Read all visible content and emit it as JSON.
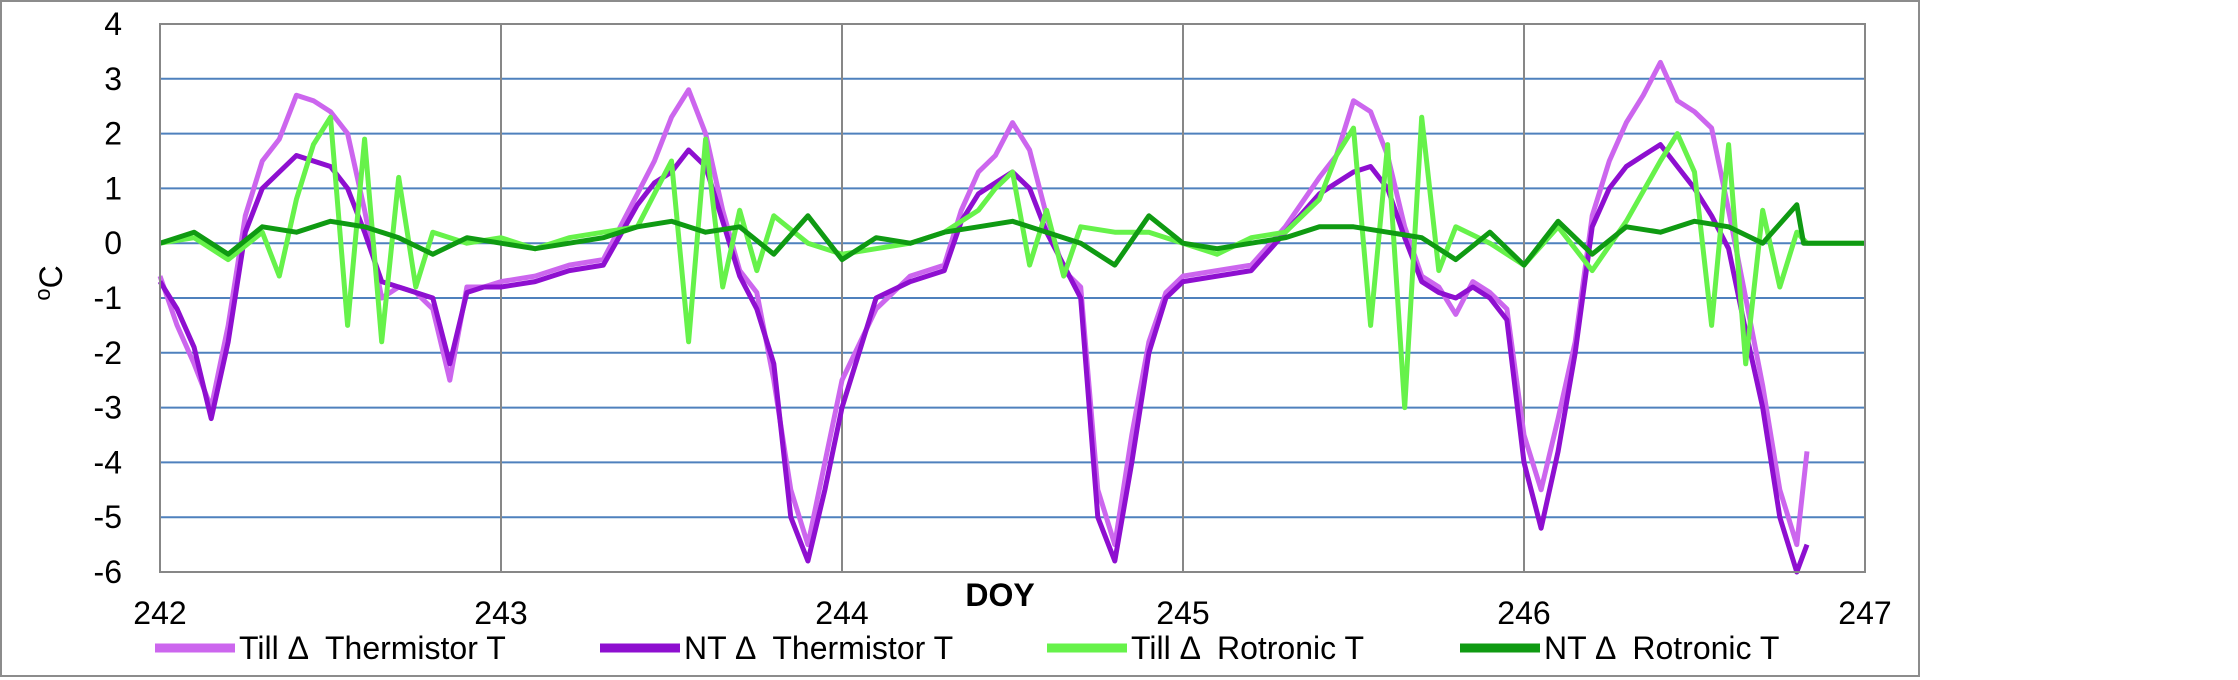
{
  "chart_data": {
    "type": "line",
    "title": "",
    "xlabel": "DOY",
    "ylabel_main": "C",
    "ylabel_superscript": "o",
    "xlim": [
      242,
      247
    ],
    "ylim": [
      -6,
      4
    ],
    "x_ticks": [
      242,
      243,
      244,
      245,
      246,
      247
    ],
    "y_ticks": [
      4,
      3,
      2,
      1,
      0,
      -1,
      -2,
      -3,
      -4,
      -5,
      -6
    ],
    "grid": "on",
    "legend_position": "bottom",
    "colors": {
      "gridline": "#4f81bd",
      "verticalGrid": "#878787",
      "till_thermistor": "#cc66ee",
      "nt_thermistor": "#8e0fd0",
      "till_rotronic": "#66f24a",
      "nt_rotronic": "#0f9a12"
    },
    "series": [
      {
        "name": "Till Δ  Thermistor T",
        "key": "till_thermistor",
        "x": [
          242.0,
          242.05,
          242.1,
          242.15,
          242.2,
          242.25,
          242.3,
          242.35,
          242.4,
          242.45,
          242.5,
          242.55,
          242.6,
          242.65,
          242.7,
          242.75,
          242.8,
          242.85,
          242.9,
          242.95,
          243.0,
          243.1,
          243.2,
          243.3,
          243.4,
          243.45,
          243.5,
          243.55,
          243.6,
          243.65,
          243.7,
          243.75,
          243.8,
          243.85,
          243.9,
          243.95,
          244.0,
          244.1,
          244.2,
          244.3,
          244.35,
          244.4,
          244.45,
          244.5,
          244.55,
          244.6,
          244.65,
          244.7,
          244.75,
          244.8,
          244.85,
          244.9,
          244.95,
          245.0,
          245.1,
          245.2,
          245.3,
          245.4,
          245.45,
          245.5,
          245.55,
          245.6,
          245.65,
          245.7,
          245.75,
          245.8,
          245.85,
          245.9,
          245.95,
          246.0,
          246.05,
          246.1,
          246.15,
          246.2,
          246.25,
          246.3,
          246.35,
          246.4,
          246.45,
          246.5,
          246.55,
          246.6,
          246.65,
          246.7,
          246.75,
          246.8,
          246.83
        ],
        "y": [
          -0.6,
          -1.5,
          -2.2,
          -3.0,
          -1.5,
          0.5,
          1.5,
          1.9,
          2.7,
          2.6,
          2.4,
          2.0,
          0.6,
          -1.0,
          -0.8,
          -0.9,
          -1.2,
          -2.5,
          -0.8,
          -0.8,
          -0.7,
          -0.6,
          -0.4,
          -0.3,
          0.9,
          1.5,
          2.3,
          2.8,
          2.0,
          0.6,
          -0.5,
          -0.9,
          -2.5,
          -4.5,
          -5.5,
          -4.0,
          -2.5,
          -1.2,
          -0.6,
          -0.4,
          0.6,
          1.3,
          1.6,
          2.2,
          1.7,
          0.5,
          -0.5,
          -0.8,
          -4.5,
          -5.5,
          -3.5,
          -1.8,
          -0.9,
          -0.6,
          -0.5,
          -0.4,
          0.3,
          1.2,
          1.6,
          2.6,
          2.4,
          1.6,
          0.3,
          -0.6,
          -0.8,
          -1.3,
          -0.7,
          -0.9,
          -1.2,
          -3.5,
          -4.5,
          -3.2,
          -1.8,
          0.5,
          1.5,
          2.2,
          2.7,
          3.3,
          2.6,
          2.4,
          2.1,
          0.6,
          -1.0,
          -2.6,
          -4.5,
          -5.5,
          -3.8
        ]
      },
      {
        "name": "NT Δ  Thermistor T",
        "key": "nt_thermistor",
        "x": [
          242.0,
          242.05,
          242.1,
          242.15,
          242.2,
          242.25,
          242.3,
          242.35,
          242.4,
          242.45,
          242.5,
          242.55,
          242.6,
          242.65,
          242.7,
          242.75,
          242.8,
          242.85,
          242.9,
          242.95,
          243.0,
          243.1,
          243.2,
          243.3,
          243.4,
          243.45,
          243.5,
          243.55,
          243.6,
          243.65,
          243.7,
          243.75,
          243.8,
          243.85,
          243.9,
          243.95,
          244.0,
          244.1,
          244.2,
          244.3,
          244.35,
          244.4,
          244.45,
          244.5,
          244.55,
          244.6,
          244.65,
          244.7,
          244.75,
          244.8,
          244.85,
          244.9,
          244.95,
          245.0,
          245.1,
          245.2,
          245.3,
          245.4,
          245.45,
          245.5,
          245.55,
          245.6,
          245.65,
          245.7,
          245.75,
          245.8,
          245.85,
          245.9,
          245.95,
          246.0,
          246.05,
          246.1,
          246.15,
          246.2,
          246.25,
          246.3,
          246.35,
          246.4,
          246.45,
          246.5,
          246.55,
          246.6,
          246.65,
          246.7,
          246.75,
          246.8,
          246.83
        ],
        "y": [
          -0.7,
          -1.2,
          -1.9,
          -3.2,
          -1.8,
          0.2,
          1.0,
          1.3,
          1.6,
          1.5,
          1.4,
          1.0,
          0.2,
          -0.7,
          -0.8,
          -0.9,
          -1.0,
          -2.2,
          -0.9,
          -0.8,
          -0.8,
          -0.7,
          -0.5,
          -0.4,
          0.7,
          1.1,
          1.3,
          1.7,
          1.4,
          0.4,
          -0.6,
          -1.2,
          -2.2,
          -5.0,
          -5.8,
          -4.5,
          -3.0,
          -1.0,
          -0.7,
          -0.5,
          0.4,
          0.9,
          1.1,
          1.3,
          1.0,
          0.2,
          -0.4,
          -1.0,
          -5.0,
          -5.8,
          -4.0,
          -2.0,
          -1.0,
          -0.7,
          -0.6,
          -0.5,
          0.2,
          0.9,
          1.1,
          1.3,
          1.4,
          1.0,
          0.1,
          -0.7,
          -0.9,
          -1.0,
          -0.8,
          -1.0,
          -1.4,
          -4.0,
          -5.2,
          -3.8,
          -2.0,
          0.3,
          1.0,
          1.4,
          1.6,
          1.8,
          1.4,
          1.0,
          0.5,
          -0.1,
          -1.6,
          -3.0,
          -5.0,
          -6.0,
          -5.5
        ]
      },
      {
        "name": "Till Δ  Rotronic T",
        "key": "till_rotronic",
        "x": [
          242.0,
          242.1,
          242.2,
          242.3,
          242.35,
          242.4,
          242.45,
          242.5,
          242.55,
          242.6,
          242.65,
          242.7,
          242.75,
          242.8,
          242.9,
          243.0,
          243.1,
          243.2,
          243.3,
          243.4,
          243.45,
          243.5,
          243.55,
          243.6,
          243.65,
          243.7,
          243.75,
          243.8,
          243.9,
          244.0,
          244.1,
          244.2,
          244.3,
          244.4,
          244.45,
          244.5,
          244.55,
          244.6,
          244.65,
          244.7,
          244.8,
          244.9,
          245.0,
          245.1,
          245.2,
          245.3,
          245.4,
          245.45,
          245.5,
          245.55,
          245.6,
          245.65,
          245.7,
          245.75,
          245.8,
          245.9,
          246.0,
          246.1,
          246.2,
          246.3,
          246.4,
          246.45,
          246.5,
          246.55,
          246.6,
          246.65,
          246.7,
          246.75,
          246.8,
          246.83,
          246.85,
          247.0
        ],
        "y": [
          0.0,
          0.1,
          -0.3,
          0.2,
          -0.6,
          0.8,
          1.8,
          2.3,
          -1.5,
          1.9,
          -1.8,
          1.2,
          -0.8,
          0.2,
          0.0,
          0.1,
          -0.1,
          0.1,
          0.2,
          0.3,
          0.9,
          1.5,
          -1.8,
          1.9,
          -0.8,
          0.6,
          -0.5,
          0.5,
          0.0,
          -0.2,
          -0.1,
          0.0,
          0.2,
          0.6,
          1.0,
          1.3,
          -0.4,
          0.6,
          -0.6,
          0.3,
          0.2,
          0.2,
          0.0,
          -0.2,
          0.1,
          0.2,
          0.8,
          1.6,
          2.1,
          -1.5,
          1.8,
          -3.0,
          2.3,
          -0.5,
          0.3,
          0.0,
          -0.4,
          0.3,
          -0.5,
          0.4,
          1.5,
          2.0,
          1.3,
          -1.5,
          1.8,
          -2.2,
          0.6,
          -0.8,
          0.2,
          0.0,
          0.0,
          0.0
        ]
      },
      {
        "name": "NT Δ  Rotronic T",
        "key": "nt_rotronic",
        "x": [
          242.0,
          242.1,
          242.2,
          242.3,
          242.4,
          242.5,
          242.6,
          242.7,
          242.8,
          242.9,
          243.0,
          243.1,
          243.2,
          243.3,
          243.4,
          243.5,
          243.6,
          243.7,
          243.8,
          243.9,
          244.0,
          244.1,
          244.2,
          244.3,
          244.4,
          244.5,
          244.6,
          244.7,
          244.8,
          244.9,
          245.0,
          245.1,
          245.2,
          245.3,
          245.4,
          245.5,
          245.6,
          245.7,
          245.8,
          245.9,
          246.0,
          246.1,
          246.2,
          246.3,
          246.4,
          246.5,
          246.6,
          246.7,
          246.8,
          246.82,
          247.0
        ],
        "y": [
          0.0,
          0.2,
          -0.2,
          0.3,
          0.2,
          0.4,
          0.3,
          0.1,
          -0.2,
          0.1,
          0.0,
          -0.1,
          0.0,
          0.1,
          0.3,
          0.4,
          0.2,
          0.3,
          -0.2,
          0.5,
          -0.3,
          0.1,
          0.0,
          0.2,
          0.3,
          0.4,
          0.2,
          0.0,
          -0.4,
          0.5,
          0.0,
          -0.1,
          0.0,
          0.1,
          0.3,
          0.3,
          0.2,
          0.1,
          -0.3,
          0.2,
          -0.4,
          0.4,
          -0.2,
          0.3,
          0.2,
          0.4,
          0.3,
          0.0,
          0.7,
          0.0,
          0.0
        ]
      }
    ]
  }
}
